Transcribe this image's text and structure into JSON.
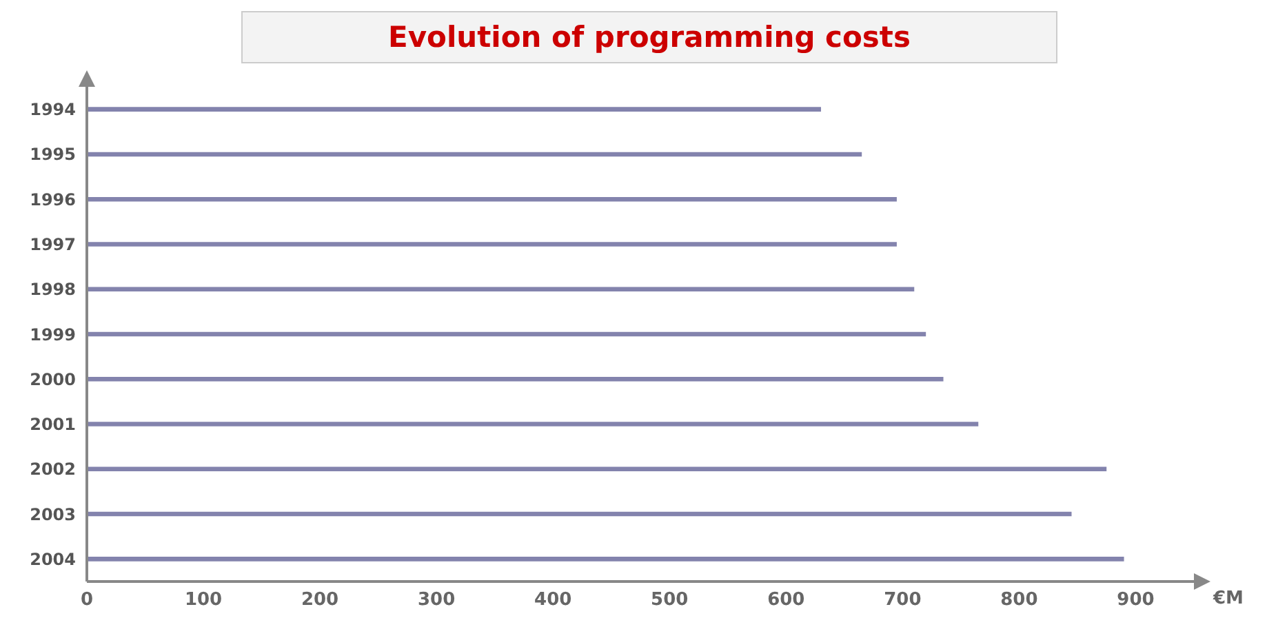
{
  "chart_data": {
    "type": "bar",
    "orientation": "horizontal",
    "title": "Evolution of programming costs",
    "xlabel": "€M",
    "categories": [
      "1994",
      "1995",
      "1996",
      "1997",
      "1998",
      "1999",
      "2000",
      "2001",
      "2002",
      "2003",
      "2004"
    ],
    "values": [
      630,
      665,
      695,
      695,
      710,
      720,
      735,
      765,
      875,
      845,
      890
    ],
    "color": "#8383ad",
    "xlim": [
      0,
      950
    ],
    "xticks": [
      0,
      100,
      200,
      300,
      400,
      500,
      600,
      700,
      800,
      900
    ],
    "grid": false,
    "legend": false
  }
}
